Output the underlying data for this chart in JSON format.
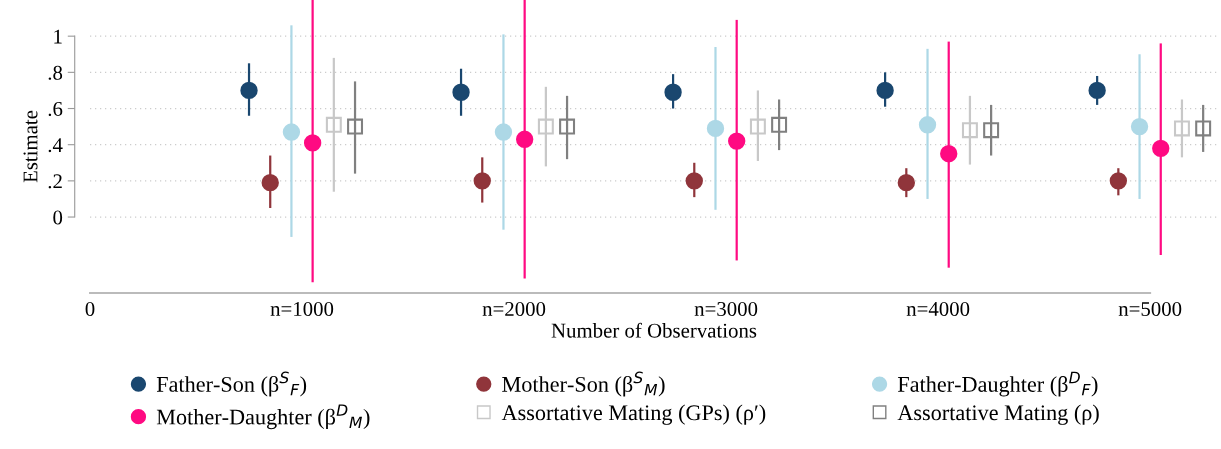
{
  "chart_data": {
    "type": "scatter",
    "xlabel": "Number of Observations",
    "ylabel": "Estimate",
    "xlim": [
      0,
      5320
    ],
    "ylim": [
      -0.42,
      1.2
    ],
    "xticks": [
      0,
      {
        "value": 1000,
        "label": "n=1000"
      },
      {
        "value": 2000,
        "label": "n=2000"
      },
      {
        "value": 3000,
        "label": "n=3000"
      },
      {
        "value": 4000,
        "label": "n=4000"
      },
      {
        "value": 5000,
        "label": "n=5000"
      }
    ],
    "yticks": [
      0,
      {
        "value": 0.2,
        "label": ".2"
      },
      {
        "value": 0.4,
        "label": ".4"
      },
      {
        "value": 0.6,
        "label": ".6"
      },
      {
        "value": 0.8,
        "label": ".8"
      },
      1
    ],
    "grid": "y",
    "legend": "bottom",
    "series": [
      {
        "name": "Father-Son (β$^{S}$$_{F}$)",
        "color": "#1a476f",
        "marker": "circle",
        "x": [
          750,
          1750,
          2750,
          3750,
          4750
        ],
        "values": [
          0.7,
          0.69,
          0.69,
          0.7,
          0.7
        ],
        "errors": [
          [
            0.56,
            0.85
          ],
          [
            0.56,
            0.82
          ],
          [
            0.6,
            0.79
          ],
          [
            0.61,
            0.8
          ],
          [
            0.62,
            0.78
          ]
        ]
      },
      {
        "name": "Mother-Son (β$^{S}$$_{M}$)",
        "color": "#90353b",
        "marker": "circle",
        "x": [
          850,
          1850,
          2850,
          3850,
          4850
        ],
        "values": [
          0.19,
          0.2,
          0.2,
          0.19,
          0.2
        ],
        "errors": [
          [
            0.05,
            0.34
          ],
          [
            0.08,
            0.33
          ],
          [
            0.11,
            0.3
          ],
          [
            0.11,
            0.27
          ],
          [
            0.12,
            0.27
          ]
        ]
      },
      {
        "name": "Father-Daughter (β$^{D}$$_{F}$)",
        "color": "#add8e6",
        "marker": "circle",
        "x": [
          950,
          1950,
          2950,
          3950,
          4950
        ],
        "values": [
          0.47,
          0.47,
          0.49,
          0.51,
          0.5
        ],
        "errors": [
          [
            -0.11,
            1.06
          ],
          [
            -0.07,
            1.01
          ],
          [
            0.04,
            0.94
          ],
          [
            0.1,
            0.93
          ],
          [
            0.1,
            0.9
          ]
        ]
      },
      {
        "name": "Mother-Daughter (β$^{D}$$_{M}$)",
        "color": "#ff0a82",
        "marker": "circle",
        "x": [
          1050,
          2050,
          3050,
          4050,
          5050
        ],
        "values": [
          0.41,
          0.43,
          0.42,
          0.35,
          0.38
        ],
        "errors": [
          [
            -0.36,
            1.2
          ],
          [
            -0.34,
            1.2
          ],
          [
            -0.24,
            1.09
          ],
          [
            -0.28,
            0.97
          ],
          [
            -0.21,
            0.96
          ]
        ]
      },
      {
        "name": "Assortative Mating (GPs) (ρ′)",
        "color": "#c8c8c8",
        "marker": "square",
        "x": [
          1150,
          2150,
          3150,
          4150,
          5150
        ],
        "values": [
          0.51,
          0.5,
          0.5,
          0.48,
          0.49
        ],
        "errors": [
          [
            0.14,
            0.88
          ],
          [
            0.28,
            0.72
          ],
          [
            0.31,
            0.7
          ],
          [
            0.29,
            0.67
          ],
          [
            0.33,
            0.65
          ]
        ]
      },
      {
        "name": "Assortative Mating (ρ)",
        "color": "#808080",
        "marker": "square",
        "x": [
          1250,
          2250,
          3250,
          4250,
          5250
        ],
        "values": [
          0.5,
          0.5,
          0.51,
          0.48,
          0.49
        ],
        "errors": [
          [
            0.24,
            0.75
          ],
          [
            0.32,
            0.67
          ],
          [
            0.37,
            0.65
          ],
          [
            0.34,
            0.62
          ],
          [
            0.36,
            0.62
          ]
        ]
      }
    ]
  }
}
